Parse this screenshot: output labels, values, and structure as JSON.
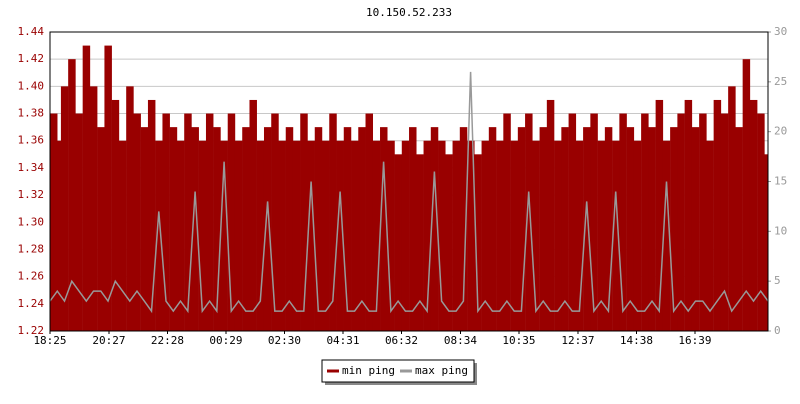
{
  "chart_data": {
    "type": "area-bar-line",
    "title": "10.150.52.233",
    "x": [
      0,
      15,
      30,
      45,
      60,
      75,
      90,
      105,
      120,
      135,
      150,
      165,
      180,
      195,
      210,
      225,
      240,
      255,
      270,
      285,
      300,
      315,
      330,
      345,
      360,
      375,
      390,
      405,
      420,
      435,
      450,
      465,
      480,
      495,
      510,
      525,
      540,
      555,
      570,
      585,
      600,
      615,
      630,
      645,
      660,
      675,
      690,
      705,
      720,
      735,
      750,
      765,
      780,
      795,
      810,
      825,
      840,
      855,
      870,
      885,
      900,
      915,
      930,
      945,
      960,
      975,
      990,
      1005,
      1020,
      1035,
      1050,
      1065,
      1080,
      1095,
      1110,
      1125,
      1140,
      1155,
      1170,
      1185,
      1200,
      1215,
      1230,
      1245,
      1260,
      1275,
      1290,
      1305,
      1320,
      1335,
      1350,
      1365,
      1380,
      1395,
      1410,
      1425,
      1440,
      1455,
      1470,
      1485
    ],
    "xlim": [
      0,
      1485
    ],
    "xticks": [
      {
        "value": 0,
        "label": "18:25"
      },
      {
        "value": 122,
        "label": "20:27"
      },
      {
        "value": 243,
        "label": "22:28"
      },
      {
        "value": 364,
        "label": "00:29"
      },
      {
        "value": 485,
        "label": "02:30"
      },
      {
        "value": 606,
        "label": "04:31"
      },
      {
        "value": 727,
        "label": "06:32"
      },
      {
        "value": 849,
        "label": "08:34"
      },
      {
        "value": 970,
        "label": "10:35"
      },
      {
        "value": 1092,
        "label": "12:37"
      },
      {
        "value": 1213,
        "label": "14:38"
      },
      {
        "value": 1334,
        "label": "16:39"
      }
    ],
    "ylim": [
      1.22,
      1.44
    ],
    "yticks": [
      {
        "value": 1.22,
        "label": "1.22"
      },
      {
        "value": 1.24,
        "label": "1.24"
      },
      {
        "value": 1.26,
        "label": "1.26"
      },
      {
        "value": 1.28,
        "label": "1.28"
      },
      {
        "value": 1.3,
        "label": "1.30"
      },
      {
        "value": 1.32,
        "label": "1.32"
      },
      {
        "value": 1.34,
        "label": "1.34"
      },
      {
        "value": 1.36,
        "label": "1.36"
      },
      {
        "value": 1.38,
        "label": "1.38"
      },
      {
        "value": 1.4,
        "label": "1.40"
      },
      {
        "value": 1.42,
        "label": "1.42"
      },
      {
        "value": 1.44,
        "label": "1.44"
      }
    ],
    "y2lim": [
      0,
      30
    ],
    "y2ticks": [
      0,
      5,
      10,
      15,
      20,
      25,
      30
    ],
    "grid": true,
    "series": [
      {
        "name": "min ping",
        "color": "#990000",
        "values": [
          1.38,
          1.36,
          1.4,
          1.42,
          1.38,
          1.43,
          1.4,
          1.37,
          1.43,
          1.39,
          1.36,
          1.4,
          1.38,
          1.37,
          1.39,
          1.36,
          1.38,
          1.37,
          1.36,
          1.38,
          1.37,
          1.36,
          1.38,
          1.37,
          1.36,
          1.38,
          1.36,
          1.37,
          1.39,
          1.36,
          1.37,
          1.38,
          1.36,
          1.37,
          1.36,
          1.38,
          1.36,
          1.37,
          1.36,
          1.38,
          1.36,
          1.37,
          1.36,
          1.37,
          1.38,
          1.36,
          1.37,
          1.36,
          1.35,
          1.36,
          1.37,
          1.35,
          1.36,
          1.37,
          1.36,
          1.35,
          1.36,
          1.37,
          1.36,
          1.35,
          1.36,
          1.37,
          1.36,
          1.38,
          1.36,
          1.37,
          1.38,
          1.36,
          1.37,
          1.39,
          1.36,
          1.37,
          1.38,
          1.36,
          1.37,
          1.38,
          1.36,
          1.37,
          1.36,
          1.38,
          1.37,
          1.36,
          1.38,
          1.37,
          1.39,
          1.36,
          1.37,
          1.38,
          1.39,
          1.37,
          1.38,
          1.36,
          1.39,
          1.38,
          1.4,
          1.37,
          1.42,
          1.39,
          1.38,
          1.35
        ]
      },
      {
        "name": "max ping",
        "color": "#999999",
        "axis": "y2",
        "values": [
          3,
          4,
          3,
          5,
          4,
          3,
          4,
          4,
          3,
          5,
          4,
          3,
          4,
          3,
          2,
          12,
          3,
          2,
          3,
          2,
          14,
          2,
          3,
          2,
          17,
          2,
          3,
          2,
          2,
          3,
          13,
          2,
          2,
          3,
          2,
          2,
          15,
          2,
          2,
          3,
          14,
          2,
          2,
          3,
          2,
          2,
          17,
          2,
          3,
          2,
          2,
          3,
          2,
          16,
          3,
          2,
          2,
          3,
          26,
          2,
          3,
          2,
          2,
          3,
          2,
          2,
          14,
          2,
          3,
          2,
          2,
          3,
          2,
          2,
          13,
          2,
          3,
          2,
          14,
          2,
          3,
          2,
          2,
          3,
          2,
          15,
          2,
          3,
          2,
          3,
          3,
          2,
          3,
          4,
          2,
          3,
          4,
          3,
          4,
          3
        ]
      }
    ]
  }
}
